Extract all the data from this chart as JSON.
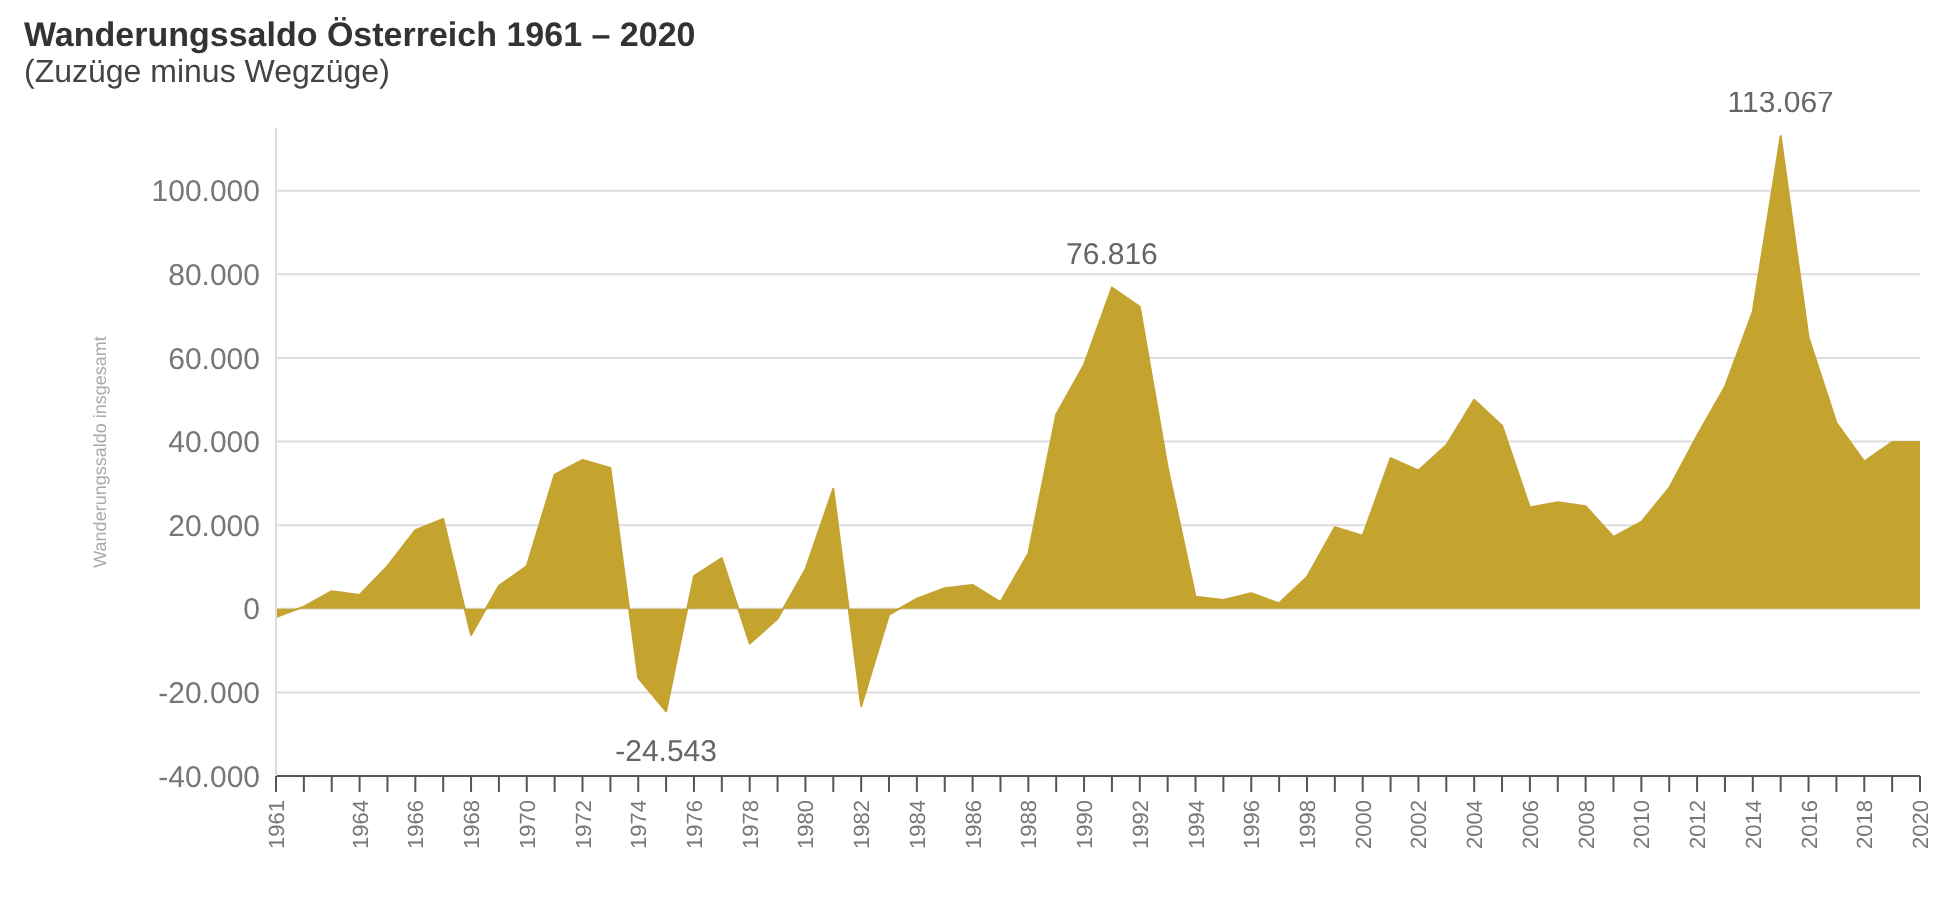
{
  "chart_data": {
    "type": "area",
    "title": "Wanderungssaldo Österreich 1961 – 2020",
    "subtitle": "(Zuzüge minus Wegzüge)",
    "ylabel": "Wanderungssaldo insgesamt",
    "x": [
      1961,
      1962,
      1963,
      1964,
      1965,
      1966,
      1967,
      1968,
      1969,
      1970,
      1971,
      1972,
      1973,
      1974,
      1975,
      1976,
      1977,
      1978,
      1979,
      1980,
      1981,
      1982,
      1983,
      1984,
      1985,
      1986,
      1987,
      1988,
      1989,
      1990,
      1991,
      1992,
      1993,
      1994,
      1995,
      1996,
      1997,
      1998,
      1999,
      2000,
      2001,
      2002,
      2003,
      2004,
      2005,
      2006,
      2007,
      2008,
      2009,
      2010,
      2011,
      2012,
      2013,
      2014,
      2015,
      2016,
      2017,
      2018,
      2019,
      2020
    ],
    "series": [
      {
        "color": "#c4a32f",
        "values": [
          -2000,
          500,
          4200,
          3300,
          10200,
          18800,
          21500,
          -6300,
          5500,
          10200,
          32100,
          35600,
          33700,
          -16500,
          -24543,
          7800,
          12100,
          -8300,
          -2400,
          9400,
          28700,
          -23300,
          -1400,
          2400,
          4900,
          5700,
          1600,
          13200,
          46500,
          58400,
          76816,
          72200,
          33800,
          2900,
          2100,
          3700,
          1300,
          7600,
          19500,
          17500,
          36000,
          33100,
          39100,
          50000,
          43800,
          24200,
          25500,
          24500,
          17200,
          20800,
          28900,
          41400,
          53100,
          71100,
          113067,
          64900,
          44500,
          35200,
          39900,
          39900
        ]
      }
    ],
    "xlim": [
      1961,
      2020
    ],
    "xticks": [
      1961,
      {
        "value": 1962,
        "label": null
      },
      {
        "value": 1963,
        "label": null
      },
      1964,
      {
        "value": 1965,
        "label": null
      },
      1966,
      {
        "value": 1967,
        "label": null
      },
      1968,
      {
        "value": 1969,
        "label": null
      },
      1970,
      {
        "value": 1971,
        "label": null
      },
      1972,
      {
        "value": 1973,
        "label": null
      },
      1974,
      {
        "value": 1975,
        "label": null
      },
      1976,
      {
        "value": 1977,
        "label": null
      },
      1978,
      {
        "value": 1979,
        "label": null
      },
      1980,
      {
        "value": 1981,
        "label": null
      },
      1982,
      {
        "value": 1983,
        "label": null
      },
      1984,
      {
        "value": 1985,
        "label": null
      },
      1986,
      {
        "value": 1987,
        "label": null
      },
      1988,
      {
        "value": 1989,
        "label": null
      },
      1990,
      {
        "value": 1991,
        "label": null
      },
      1992,
      {
        "value": 1993,
        "label": null
      },
      1994,
      {
        "value": 1995,
        "label": null
      },
      1996,
      {
        "value": 1997,
        "label": null
      },
      1998,
      {
        "value": 1999,
        "label": null
      },
      2000,
      {
        "value": 2001,
        "label": null
      },
      2002,
      {
        "value": 2003,
        "label": null
      },
      2004,
      {
        "value": 2005,
        "label": null
      },
      2006,
      {
        "value": 2007,
        "label": null
      },
      2008,
      {
        "value": 2009,
        "label": null
      },
      2010,
      {
        "value": 2011,
        "label": null
      },
      2012,
      {
        "value": 2013,
        "label": null
      },
      2014,
      {
        "value": 2015,
        "label": null
      },
      2016,
      {
        "value": 2017,
        "label": null
      },
      2018,
      {
        "value": 2019,
        "label": null
      },
      2020
    ],
    "ylim": [
      -40000,
      115000
    ],
    "yticks": [
      {
        "value": -40000,
        "label": "-40.000"
      },
      {
        "value": -20000,
        "label": "-20.000"
      },
      0,
      {
        "value": 20000,
        "label": "20.000"
      },
      {
        "value": 40000,
        "label": "40.000"
      },
      {
        "value": 60000,
        "label": "60.000"
      },
      {
        "value": 80000,
        "label": "80.000"
      },
      {
        "value": 100000,
        "label": "100.000"
      }
    ],
    "grid": "y",
    "annotations": [
      {
        "text": "76.816",
        "x": 1991,
        "y": 76816
      },
      {
        "text": "-24.543",
        "x": 1975,
        "y": -24543
      },
      {
        "text": "113.067",
        "x": 2015,
        "y": 113067
      }
    ]
  }
}
